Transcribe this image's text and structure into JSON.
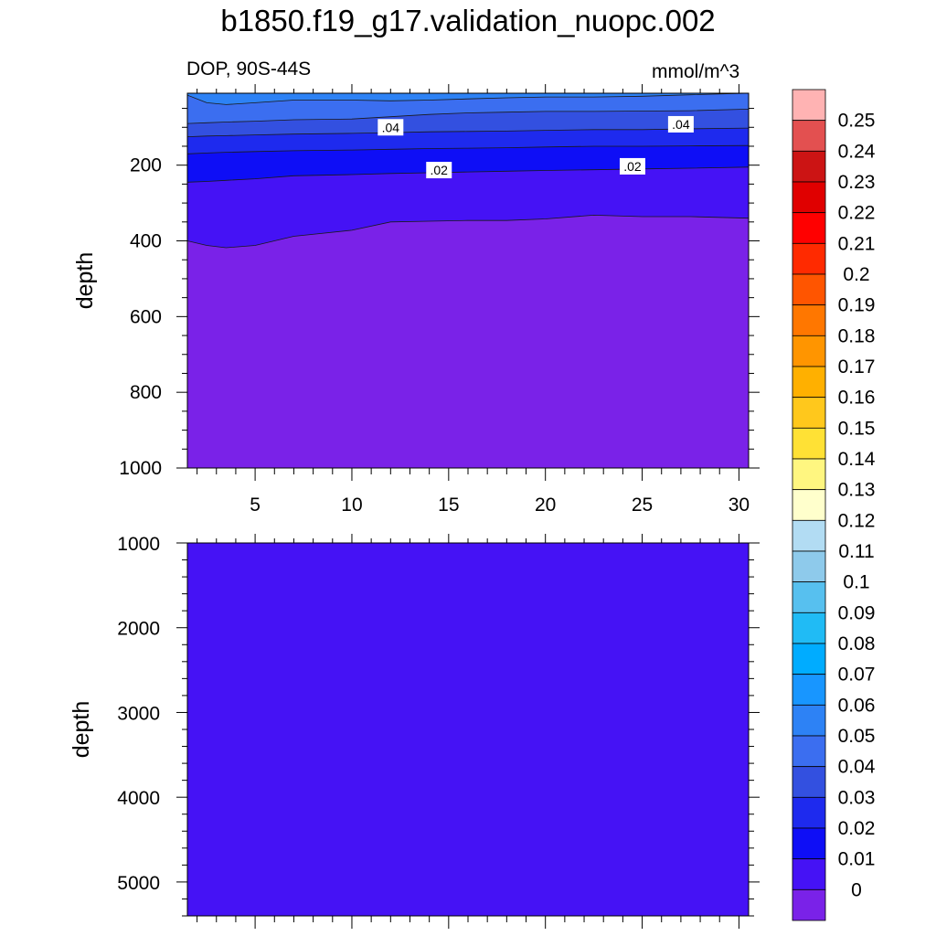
{
  "chart_data": {
    "type": "heatmap",
    "title": "b1850.f19_g17.validation_nuopc.002",
    "variable_label": "DOP, 90S-44S",
    "units_label": "mmol/m^3",
    "colorbar": {
      "labels": [
        "0.25",
        "0.24",
        "0.23",
        "0.22",
        "0.21",
        "0.2",
        "0.19",
        "0.18",
        "0.17",
        "0.16",
        "0.15",
        "0.14",
        "0.13",
        "0.12",
        "0.11",
        "0.1",
        "0.09",
        "0.08",
        "0.07",
        "0.06",
        "0.05",
        "0.04",
        "0.03",
        "0.02",
        "0.01",
        "0"
      ],
      "colors": [
        "#ffb3b3",
        "#e35050",
        "#cc1414",
        "#e00000",
        "#ff0000",
        "#ff2a00",
        "#ff5500",
        "#ff7700",
        "#ff9500",
        "#ffb000",
        "#ffc81c",
        "#ffe135",
        "#fff680",
        "#ffffcc",
        "#b2dcf3",
        "#8ecaeb",
        "#57c0ef",
        "#20bbf5",
        "#00acff",
        "#1896ff",
        "#2d82f5",
        "#3b6ef0",
        "#3350e0",
        "#1e2aee",
        "#0e0ef6",
        "#4512f5",
        "#7a22e8"
      ]
    },
    "panels": [
      {
        "ylabel": "depth",
        "ylim": [
          1000,
          10
        ],
        "xlim": [
          1.5,
          30.5
        ],
        "x_ticks": [
          "5",
          "10",
          "15",
          "20",
          "25",
          "30"
        ],
        "y_ticks": [
          "200",
          "400",
          "600",
          "800",
          "1000"
        ],
        "contour_labels": [
          ".04",
          ".04",
          ".02",
          ".02"
        ],
        "x": [
          1.5,
          2.5,
          3.5,
          5,
          7,
          10,
          12,
          14,
          16,
          18,
          20,
          22.5,
          25,
          27.5,
          30.5
        ],
        "contours": [
          {
            "level": 0.05,
            "depth": [
              15,
              35,
              40,
              35,
              28,
              28,
              30,
              28,
              25,
              22,
              20,
              20,
              18,
              14,
              10
            ]
          },
          {
            "level": 0.04,
            "depth": [
              90,
              88,
              86,
              84,
              80,
              78,
              72,
              66,
              62,
              60,
              58,
              58,
              57,
              56,
              52
            ]
          },
          {
            "level": 0.03,
            "depth": [
              125,
              123,
              122,
              120,
              118,
              116,
              114,
              112,
              111,
              110,
              108,
              106,
              106,
              104,
              102
            ]
          },
          {
            "level": 0.02,
            "depth": [
              170,
              168,
              166,
              164,
              162,
              160,
              158,
              156,
              155,
              154,
              152,
              150,
              150,
              149,
              148
            ]
          },
          {
            "level": 0.01,
            "depth": [
              245,
              243,
              240,
              236,
              228,
              225,
              222,
              220,
              218,
              216,
              214,
              212,
              210,
              208,
              205
            ]
          },
          {
            "level": 0.0,
            "depth": [
              400,
              412,
              418,
              412,
              388,
              372,
              350,
              348,
              346,
              346,
              342,
              332,
              336,
              336,
              340
            ]
          }
        ]
      },
      {
        "ylabel": "depth",
        "ylim": [
          5400,
          1000
        ],
        "xlim": [
          1.5,
          30.5
        ],
        "y_ticks": [
          "1000",
          "2000",
          "3000",
          "4000",
          "5000"
        ],
        "value_range": [
          0.0,
          0.01
        ]
      }
    ]
  }
}
